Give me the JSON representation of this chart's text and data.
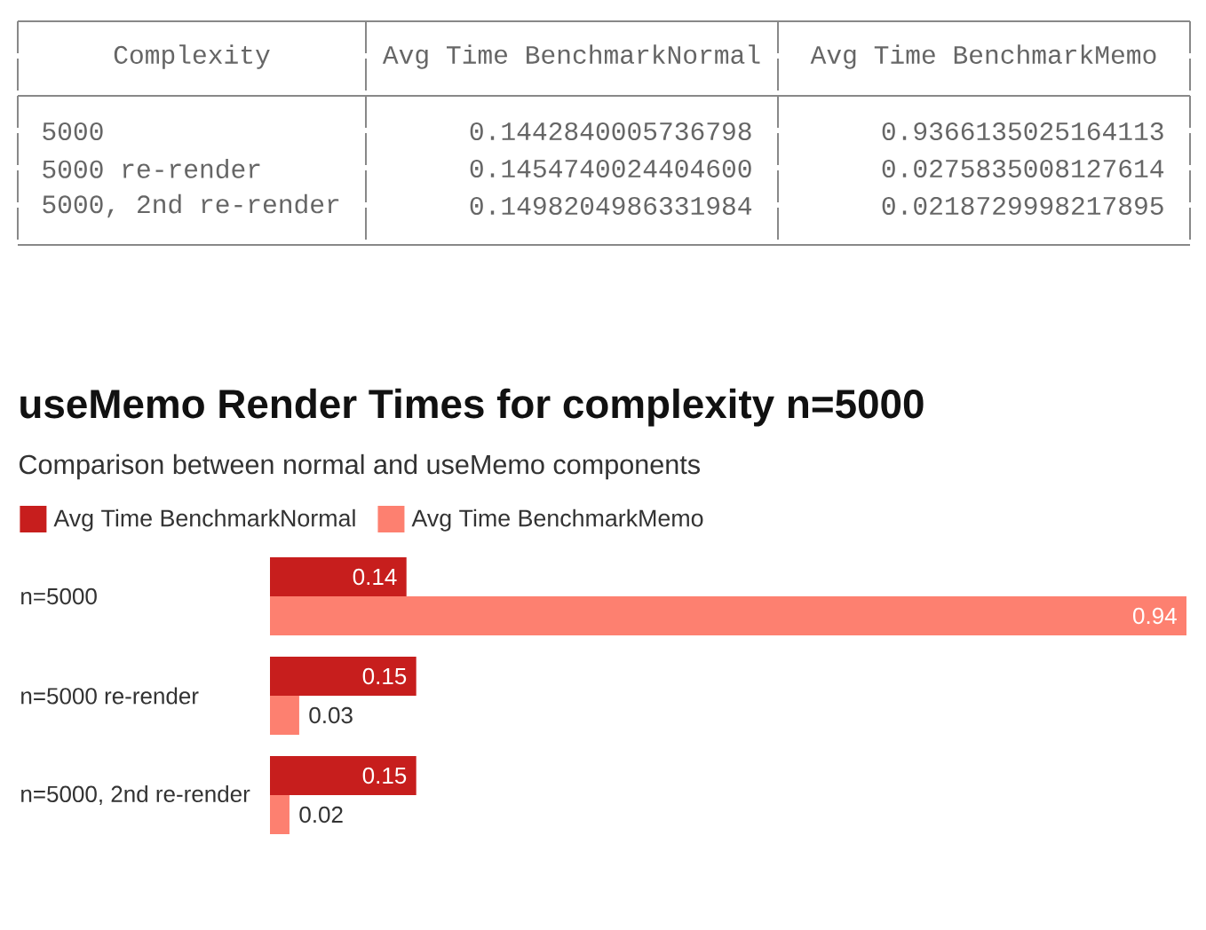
{
  "chart_data": [
    {
      "type": "other",
      "xlabel": "Complexity",
      "categories": [
        "5000",
        "5000 re-render",
        "5000, 2nd re-render"
      ],
      "series": [
        {
          "name": "Avg Time BenchmarkNormal",
          "values": [
            0.1442840005736798,
            0.14547400244046,
            0.1498204986331984
          ],
          "value_labels": [
            "0.1442840005736798",
            "0.1454740024404600",
            "0.1498204986331984"
          ]
        },
        {
          "name": "Avg Time BenchmarkMemo",
          "values": [
            0.9366135025164113,
            0.0275835008127614,
            0.0218729998217895
          ],
          "value_labels": [
            "0.9366135025164113",
            "0.0275835008127614",
            "0.0218729998217895"
          ]
        }
      ]
    },
    {
      "type": "bar",
      "orientation": "horizontal",
      "title": "useMemo Render Times for complexity n=5000",
      "subtitle": "Comparison between normal and useMemo components",
      "categories": [
        "n=5000",
        "n=5000 re-render",
        "n=5000, 2nd re-render"
      ],
      "series": [
        {
          "name": "Avg Time BenchmarkNormal",
          "color": "#c71e1d",
          "values": [
            0.14,
            0.15,
            0.15
          ]
        },
        {
          "name": "Avg Time BenchmarkMemo",
          "color": "#fd8070",
          "values": [
            0.94,
            0.03,
            0.02
          ]
        }
      ],
      "data_labels": true,
      "legend": "top left"
    }
  ]
}
